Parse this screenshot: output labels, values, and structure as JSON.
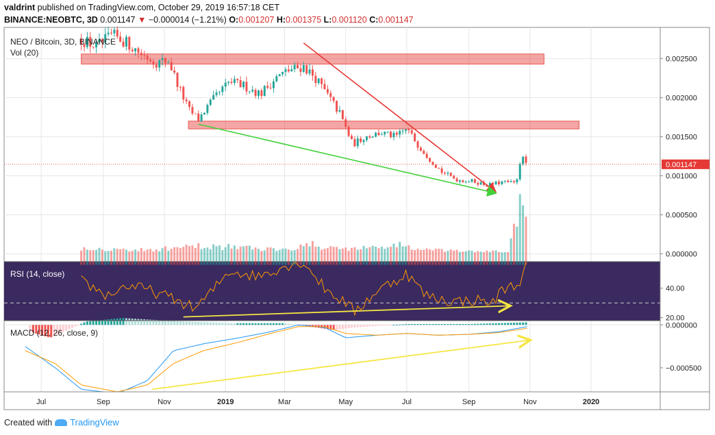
{
  "header": {
    "author": "valdrint",
    "published_text": "published on TradingView.com, October 29, 2019 16:57:18 CET",
    "symbol": "BINANCE:NEOBTC, 3D",
    "last": "0.001147",
    "change_arrow": "▼",
    "change": "−0.000014 (−1.21%)",
    "o_label": "O:",
    "o": "0.001207",
    "h_label": "H:",
    "h": "0.001375",
    "l_label": "L:",
    "l": "0.001120",
    "c_label": "C:",
    "c": "0.001147"
  },
  "footer": {
    "created_with": "Created with",
    "brand": "TradingView"
  },
  "colors": {
    "up": "#26a69a",
    "down": "#ef5350",
    "zone": "#e53935",
    "rsi_bg": "#3a2a60",
    "rsi_line": "#ff9800",
    "macd_line": "#2196f3",
    "signal_line": "#ff9800",
    "trend_red": "#e53935",
    "trend_green": "#43d13b",
    "trend_yellow": "#f5e642"
  },
  "chart_data": {
    "type": "candlestick",
    "main_pane": {
      "legend": "NEO / Bitcoin, 3D, BINANCE",
      "volume_legend": "Vol (20)",
      "y_ticks": [
        "0.002500",
        "0.002000",
        "0.001500",
        "0.001000",
        "0.000500",
        "0.000000"
      ],
      "y_tick_values": [
        0.0025,
        0.002,
        0.0015,
        0.001,
        0.0005,
        0.0
      ],
      "last_price_label": "0.001147",
      "last_price": 0.001147,
      "ylim": [
        -0.0001,
        0.0029
      ],
      "resistance_zones": [
        {
          "x_start": "2018-08-10",
          "x_end": "2019-11-15",
          "low": 0.00243,
          "high": 0.00256
        },
        {
          "x_start": "2018-11-25",
          "x_end": "2019-12-20",
          "low": 0.0016,
          "high": 0.0017
        }
      ],
      "trend_lines": [
        {
          "color": "red",
          "from": [
            "2019-03-20",
            0.0027
          ],
          "to": [
            "2019-09-27",
            0.0008
          ]
        },
        {
          "color": "green",
          "from": [
            "2018-12-05",
            0.00166
          ],
          "to": [
            "2019-09-27",
            0.00078
          ]
        }
      ],
      "price_path": [
        [
          "2018-08-10",
          0.00275
        ],
        [
          "2018-08-25",
          0.00265
        ],
        [
          "2018-09-10",
          0.0028
        ],
        [
          "2018-09-25",
          0.0027
        ],
        [
          "2018-10-10",
          0.00255
        ],
        [
          "2018-10-25",
          0.00245
        ],
        [
          "2018-11-05",
          0.00248
        ],
        [
          "2018-11-15",
          0.00215
        ],
        [
          "2018-11-25",
          0.00185
        ],
        [
          "2018-12-05",
          0.00172
        ],
        [
          "2018-12-15",
          0.0019
        ],
        [
          "2018-12-25",
          0.00205
        ],
        [
          "2019-01-05",
          0.0022
        ],
        [
          "2019-01-20",
          0.00215
        ],
        [
          "2019-02-05",
          0.00205
        ],
        [
          "2019-02-20",
          0.00225
        ],
        [
          "2019-03-05",
          0.00235
        ],
        [
          "2019-03-20",
          0.0024
        ],
        [
          "2019-04-01",
          0.00225
        ],
        [
          "2019-04-12",
          0.00205
        ],
        [
          "2019-04-25",
          0.0018
        ],
        [
          "2019-05-08",
          0.0014
        ],
        [
          "2019-05-20",
          0.0015
        ],
        [
          "2019-06-05",
          0.00155
        ],
        [
          "2019-06-20",
          0.0015
        ],
        [
          "2019-07-01",
          0.0016
        ],
        [
          "2019-07-12",
          0.0014
        ],
        [
          "2019-07-25",
          0.0012
        ],
        [
          "2019-08-05",
          0.00105
        ],
        [
          "2019-08-20",
          0.00095
        ],
        [
          "2019-09-05",
          0.00093
        ],
        [
          "2019-09-20",
          0.00088
        ],
        [
          "2019-10-05",
          0.00092
        ],
        [
          "2019-10-18",
          0.0009
        ],
        [
          "2019-10-23",
          0.00125
        ],
        [
          "2019-10-29",
          0.001147
        ]
      ],
      "volume_path": [
        [
          "2018-08-10",
          8e-05
        ],
        [
          "2018-09-10",
          6e-05
        ],
        [
          "2018-10-10",
          5e-05
        ],
        [
          "2018-11-10",
          7e-05
        ],
        [
          "2018-12-10",
          0.0001
        ],
        [
          "2019-01-10",
          9e-05
        ],
        [
          "2019-02-10",
          6e-05
        ],
        [
          "2019-03-10",
          8e-05
        ],
        [
          "2019-03-25",
          0.00012
        ],
        [
          "2019-04-10",
          8e-05
        ],
        [
          "2019-05-10",
          7e-05
        ],
        [
          "2019-06-10",
          9e-05
        ],
        [
          "2019-06-25",
          0.00012
        ],
        [
          "2019-07-10",
          6e-05
        ],
        [
          "2019-08-10",
          4e-05
        ],
        [
          "2019-09-10",
          3e-05
        ],
        [
          "2019-10-10",
          3e-05
        ],
        [
          "2019-10-23",
          0.00058
        ],
        [
          "2019-10-29",
          0.00029
        ]
      ]
    },
    "rsi_pane": {
      "legend": "RSI (14, close)",
      "y_ticks": [
        "40.00",
        "20.00"
      ],
      "y_tick_values": [
        40,
        20
      ],
      "ylim": [
        18,
        58
      ],
      "dashed_level": 30,
      "rsi_path": [
        [
          "2018-08-10",
          45
        ],
        [
          "2018-09-05",
          35
        ],
        [
          "2018-09-25",
          42
        ],
        [
          "2018-10-20",
          38
        ],
        [
          "2018-11-20",
          30
        ],
        [
          "2018-12-01",
          26
        ],
        [
          "2018-12-15",
          35
        ],
        [
          "2019-01-05",
          52
        ],
        [
          "2019-02-01",
          48
        ],
        [
          "2019-03-01",
          55
        ],
        [
          "2019-03-20",
          58
        ],
        [
          "2019-04-10",
          40
        ],
        [
          "2019-05-01",
          30
        ],
        [
          "2019-05-10",
          24
        ],
        [
          "2019-06-01",
          38
        ],
        [
          "2019-07-01",
          50
        ],
        [
          "2019-07-20",
          35
        ],
        [
          "2019-08-15",
          31
        ],
        [
          "2019-09-10",
          32
        ],
        [
          "2019-09-25",
          30
        ],
        [
          "2019-10-05",
          40
        ],
        [
          "2019-10-20",
          42
        ],
        [
          "2019-10-29",
          58
        ]
      ],
      "trend_line": {
        "color": "yellow",
        "from": [
          "2018-11-20",
          20.5
        ],
        "to": [
          "2019-10-10",
          28
        ]
      }
    },
    "macd_pane": {
      "legend": "MACD (12, 26, close, 9)",
      "y_ticks": [
        "0.000000",
        "−0.000500"
      ],
      "y_tick_values": [
        0.0,
        -0.0005
      ],
      "ylim": [
        -0.00078,
        5e-05
      ],
      "macd_path": [
        [
          "2018-06-15",
          -0.00025
        ],
        [
          "2018-07-15",
          -0.0005
        ],
        [
          "2018-08-10",
          -0.00075
        ],
        [
          "2018-09-15",
          -0.0008
        ],
        [
          "2018-10-15",
          -0.00065
        ],
        [
          "2018-11-10",
          -0.0003
        ],
        [
          "2018-12-10",
          -0.00022
        ],
        [
          "2019-01-15",
          -0.00015
        ],
        [
          "2019-02-15",
          -8e-05
        ],
        [
          "2019-03-15",
          0.0
        ],
        [
          "2019-04-10",
          -3e-05
        ],
        [
          "2019-05-01",
          -0.00015
        ],
        [
          "2019-06-01",
          -0.00012
        ],
        [
          "2019-07-01",
          -0.0001
        ],
        [
          "2019-08-01",
          -0.00012
        ],
        [
          "2019-09-01",
          -0.00011
        ],
        [
          "2019-10-01",
          -8e-05
        ],
        [
          "2019-10-29",
          -2e-05
        ]
      ],
      "signal_path": [
        [
          "2018-06-15",
          -0.0003
        ],
        [
          "2018-07-15",
          -0.00045
        ],
        [
          "2018-08-10",
          -0.0007
        ],
        [
          "2018-09-15",
          -0.00078
        ],
        [
          "2018-10-15",
          -0.0007
        ],
        [
          "2018-11-10",
          -0.00045
        ],
        [
          "2018-12-10",
          -0.0003
        ],
        [
          "2019-01-15",
          -0.0002
        ],
        [
          "2019-02-15",
          -0.0001
        ],
        [
          "2019-03-15",
          -2e-05
        ],
        [
          "2019-04-10",
          -2e-05
        ],
        [
          "2019-05-01",
          -0.0001
        ],
        [
          "2019-06-01",
          -0.00012
        ],
        [
          "2019-07-01",
          -0.0001
        ],
        [
          "2019-08-01",
          -0.00012
        ],
        [
          "2019-09-01",
          -0.00011
        ],
        [
          "2019-10-01",
          -9e-05
        ],
        [
          "2019-10-29",
          -4e-05
        ]
      ],
      "histogram_path": [
        [
          "2018-06-20",
          -8e-05
        ],
        [
          "2018-07-10",
          -0.00015
        ],
        [
          "2018-08-15",
          4e-05
        ],
        [
          "2018-09-20",
          8e-05
        ],
        [
          "2018-10-20",
          6e-05
        ],
        [
          "2018-11-20",
          4e-05
        ],
        [
          "2019-01-10",
          2e-05
        ],
        [
          "2019-03-01",
          2e-05
        ],
        [
          "2019-04-20",
          -6e-05
        ],
        [
          "2019-05-10",
          -3e-05
        ],
        [
          "2019-07-01",
          1e-05
        ],
        [
          "2019-09-01",
          1e-05
        ],
        [
          "2019-10-29",
          3e-05
        ]
      ],
      "trend_line": {
        "color": "yellow",
        "from": [
          "2018-10-20",
          -0.00075
        ],
        "to": [
          "2019-10-30",
          -0.00018
        ]
      }
    },
    "x_axis": {
      "ticks": [
        "Jul",
        "Sep",
        "Nov",
        "2019",
        "Mar",
        "May",
        "Jul",
        "Sep",
        "Nov",
        "2020"
      ],
      "tick_dates": [
        "2018-07-01",
        "2018-09-01",
        "2018-11-01",
        "2019-01-01",
        "2019-03-01",
        "2019-05-01",
        "2019-07-01",
        "2019-09-01",
        "2019-11-01",
        "2020-01-01"
      ],
      "bold_ticks": [
        "2019",
        "2020"
      ],
      "range": [
        "2018-05-25",
        "2020-03-10"
      ]
    }
  }
}
